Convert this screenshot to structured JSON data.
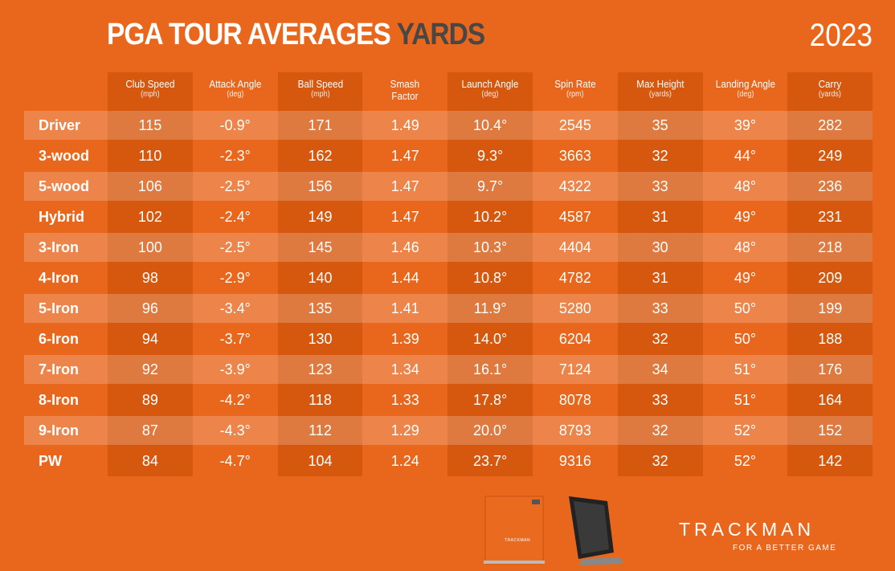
{
  "header": {
    "title": "PGA TOUR AVERAGES",
    "title_accent": "YARDS",
    "year": "2023"
  },
  "table": {
    "columns": [
      {
        "name": "Club Speed",
        "unit": "(mph)"
      },
      {
        "name": "Attack Angle",
        "unit": "(deg)"
      },
      {
        "name": "Ball Speed",
        "unit": "(mph)"
      },
      {
        "name": "Smash Factor"
      },
      {
        "name": "Launch Angle",
        "unit": "(deg)"
      },
      {
        "name": "Spin Rate",
        "unit": "(rpm)"
      },
      {
        "name": "Max Height",
        "unit": "(yards)"
      },
      {
        "name": "Landing Angle",
        "unit": "(deg)"
      },
      {
        "name": "Carry",
        "unit": "(yards)"
      }
    ],
    "rows": [
      {
        "club": "Driver",
        "values": [
          "115",
          "-0.9°",
          "171",
          "1.49",
          "10.4°",
          "2545",
          "35",
          "39°",
          "282"
        ]
      },
      {
        "club": "3-wood",
        "values": [
          "110",
          "-2.3°",
          "162",
          "1.47",
          "9.3°",
          "3663",
          "32",
          "44°",
          "249"
        ]
      },
      {
        "club": "5-wood",
        "values": [
          "106",
          "-2.5°",
          "156",
          "1.47",
          "9.7°",
          "4322",
          "33",
          "48°",
          "236"
        ]
      },
      {
        "club": "Hybrid",
        "values": [
          "102",
          "-2.4°",
          "149",
          "1.47",
          "10.2°",
          "4587",
          "31",
          "49°",
          "231"
        ]
      },
      {
        "club": "3-Iron",
        "values": [
          "100",
          "-2.5°",
          "145",
          "1.46",
          "10.3°",
          "4404",
          "30",
          "48°",
          "218"
        ]
      },
      {
        "club": "4-Iron",
        "values": [
          "98",
          "-2.9°",
          "140",
          "1.44",
          "10.8°",
          "4782",
          "31",
          "49°",
          "209"
        ]
      },
      {
        "club": "5-Iron",
        "values": [
          "96",
          "-3.4°",
          "135",
          "1.41",
          "11.9°",
          "5280",
          "33",
          "50°",
          "199"
        ]
      },
      {
        "club": "6-Iron",
        "values": [
          "94",
          "-3.7°",
          "130",
          "1.39",
          "14.0°",
          "6204",
          "32",
          "50°",
          "188"
        ]
      },
      {
        "club": "7-Iron",
        "values": [
          "92",
          "-3.9°",
          "123",
          "1.34",
          "16.1°",
          "7124",
          "34",
          "51°",
          "176"
        ]
      },
      {
        "club": "8-Iron",
        "values": [
          "89",
          "-4.2°",
          "118",
          "1.33",
          "17.8°",
          "8078",
          "33",
          "51°",
          "164"
        ]
      },
      {
        "club": "9-Iron",
        "values": [
          "87",
          "-4.3°",
          "112",
          "1.29",
          "20.0°",
          "8793",
          "32",
          "52°",
          "152"
        ]
      },
      {
        "club": "PW",
        "values": [
          "84",
          "-4.7°",
          "104",
          "1.24",
          "23.7°",
          "9316",
          "32",
          "52°",
          "142"
        ]
      }
    ]
  },
  "footer": {
    "device_label": "TRACKMAN",
    "brand": "TRACKMAN",
    "tagline": "FOR A BETTER GAME"
  }
}
